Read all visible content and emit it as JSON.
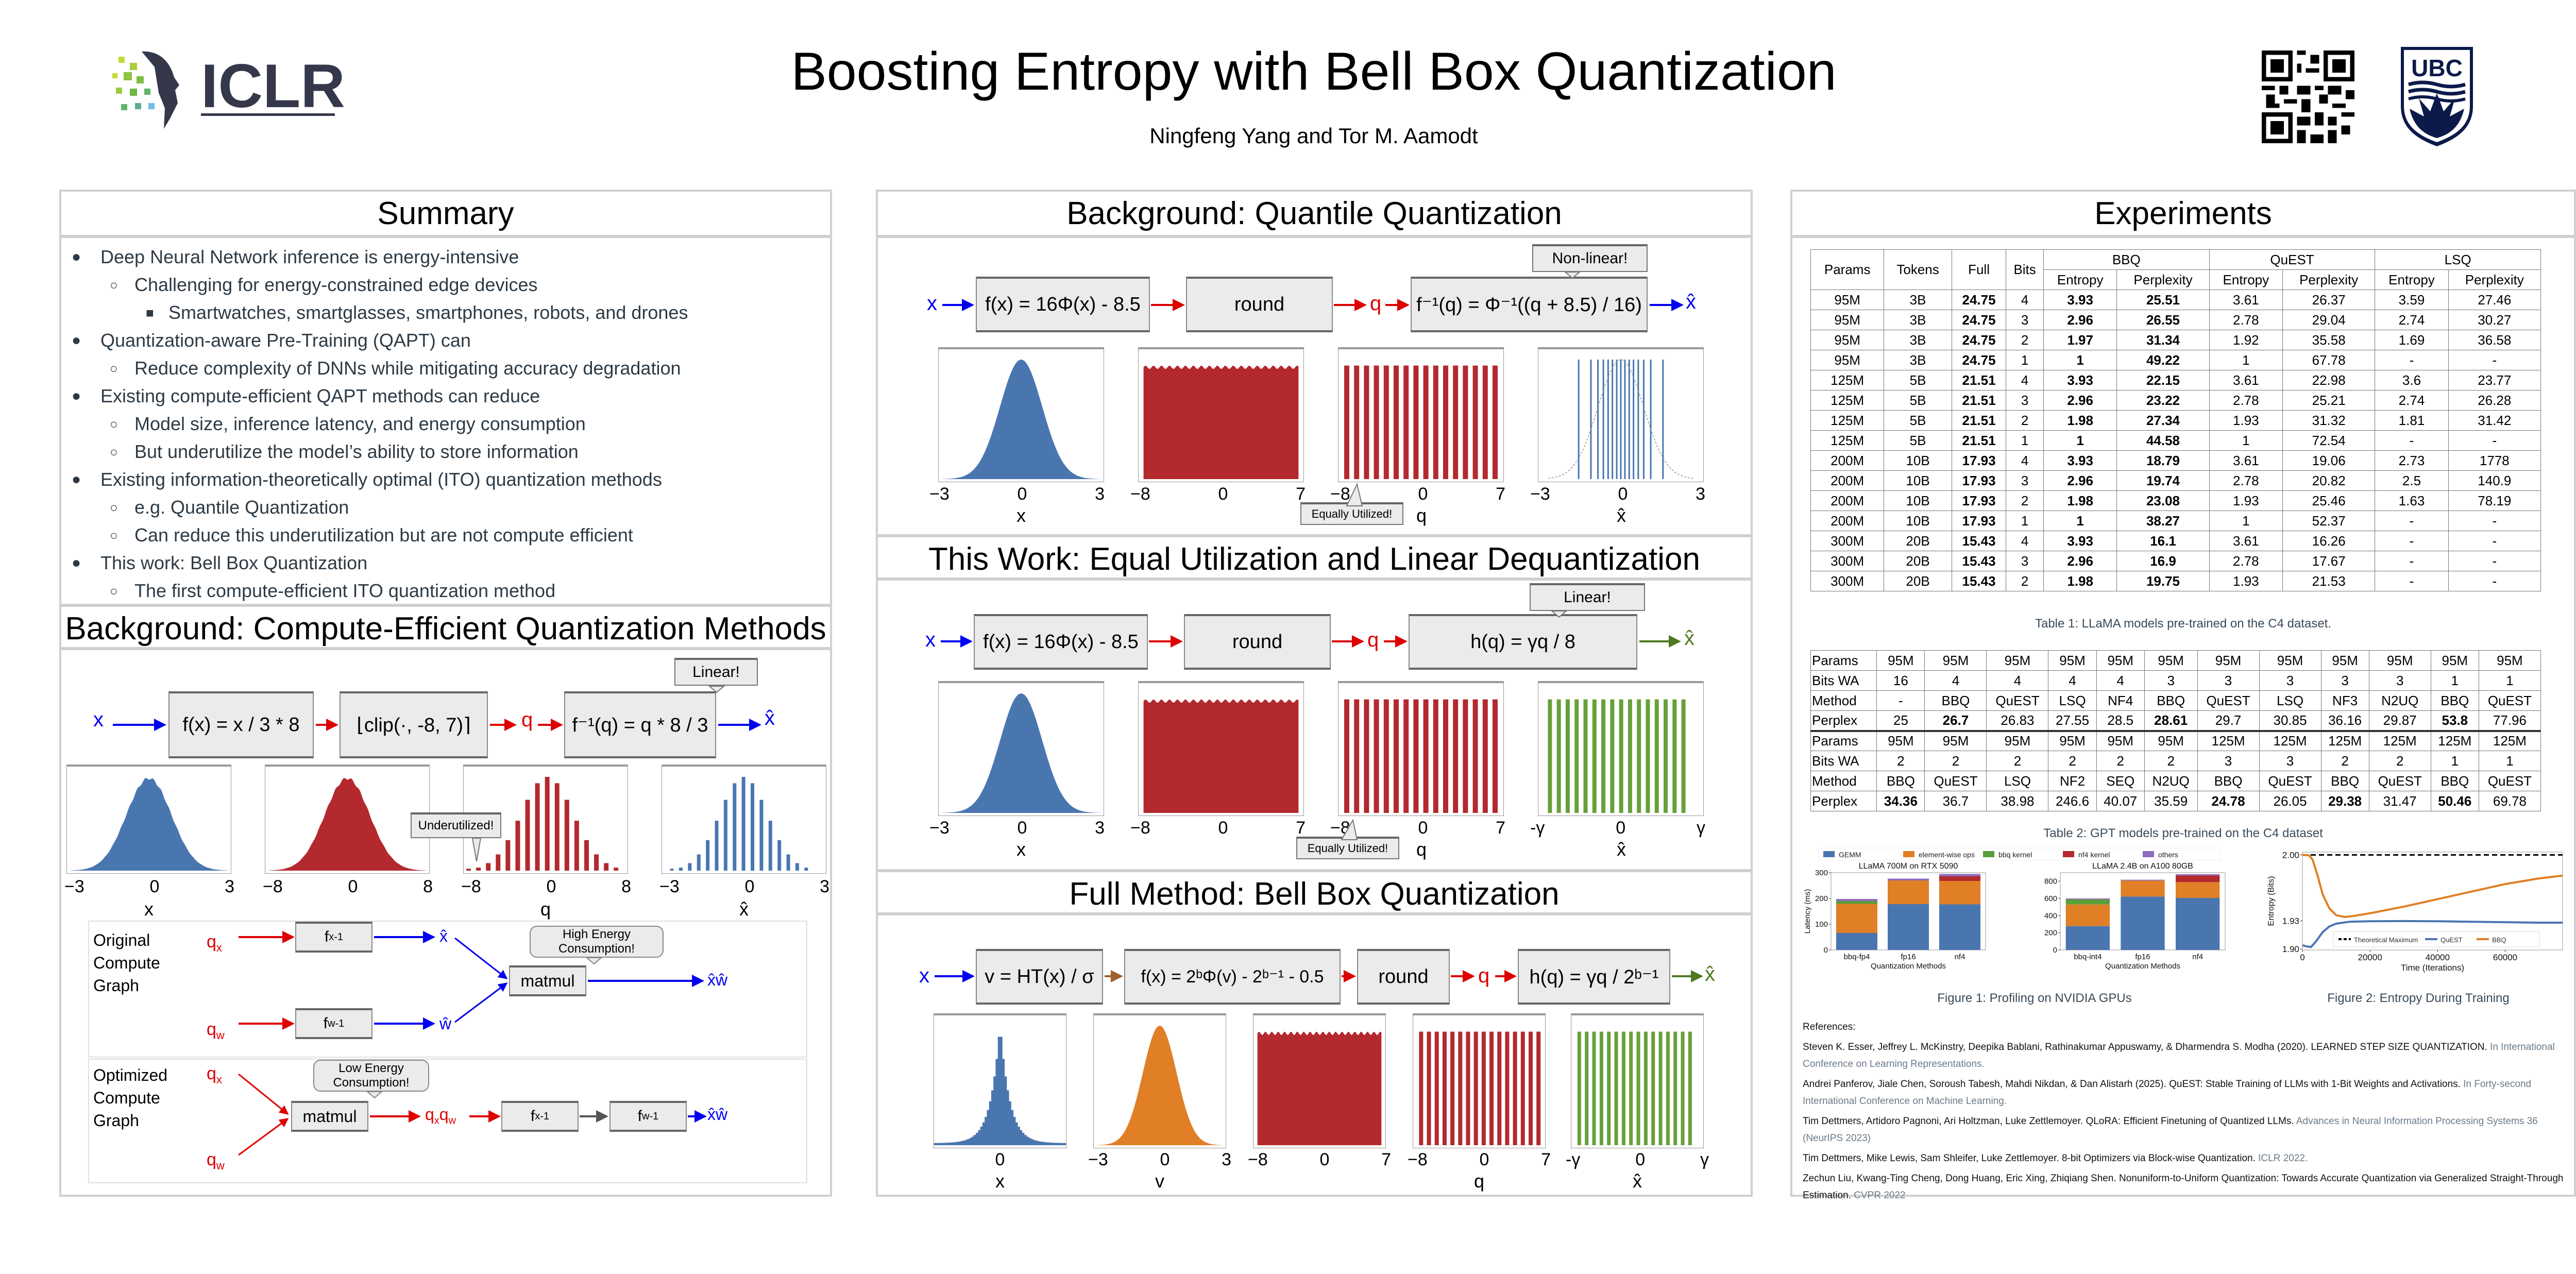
{
  "header": {
    "title": "Boosting Entropy with Bell Box Quantization",
    "authors": "Ningfeng Yang and Tor M. Aamodt",
    "left_logo": "ICLR",
    "right_logo": "UBC",
    "qr_icon": "qr-code-icon"
  },
  "summary": {
    "title": "Summary",
    "items": [
      {
        "level": 0,
        "text": "Deep Neural Network inference is energy-intensive"
      },
      {
        "level": 1,
        "text": "Challenging for energy-constrained edge devices"
      },
      {
        "level": 2,
        "text": "Smartwatches, smartglasses, smartphones, robots, and drones"
      },
      {
        "level": 0,
        "text": "Quantization-aware Pre-Training (QAPT) can"
      },
      {
        "level": 1,
        "text": "Reduce complexity of DNNs while mitigating accuracy degradation"
      },
      {
        "level": 0,
        "text": "Existing compute-efficient QAPT methods can reduce"
      },
      {
        "level": 1,
        "text": "Model size, inference latency, and energy consumption"
      },
      {
        "level": 1,
        "text": "But underutilize the model’s ability to store information"
      },
      {
        "level": 0,
        "text": "Existing information-theoretically optimal (ITO) quantization methods"
      },
      {
        "level": 1,
        "text": "e.g. Quantile Quantization"
      },
      {
        "level": 1,
        "text": "Can reduce this underutilization but are not compute efficient"
      },
      {
        "level": 0,
        "text": "This work: Bell Box Quantization"
      },
      {
        "level": 1,
        "text": "The first compute-efficient ITO quantization method"
      }
    ],
    "bullets": [
      "●",
      "○",
      "■"
    ]
  },
  "compute_efficient": {
    "title": "Background: Compute-Efficient Quantization Methods",
    "input": "x",
    "boxes": [
      "f(x) = x / 3 * 8",
      "⌊clip(·, -8, 7)⌉",
      "f⁻¹(q) = q * 8 / 3"
    ],
    "mid": "q",
    "output": "x̂",
    "callout_linear": "Linear!",
    "callout_under": "Underutilized!",
    "hists": [
      {
        "ticks": [
          "−3",
          "0",
          "3"
        ],
        "label": "x"
      },
      {
        "ticks": [
          "−8",
          "0",
          "8"
        ],
        "label": ""
      },
      {
        "ticks": [
          "−8",
          "0",
          "8"
        ],
        "label": "q"
      },
      {
        "ticks": [
          "−3",
          "0",
          "3"
        ],
        "label": "x̂"
      }
    ],
    "original_graph": {
      "label": [
        "Original",
        "Compute",
        "Graph"
      ],
      "qx": "qx",
      "qw": "qw",
      "fx": "fx⁻¹",
      "fw": "fw⁻¹",
      "xhat": "x̂",
      "what": "ŵ",
      "matmul": "matmul",
      "out": "x̂ŵ",
      "callout": [
        "High Energy",
        "Consumption!"
      ]
    },
    "optimized_graph": {
      "label": [
        "Optimized",
        "Compute",
        "Graph"
      ],
      "qx": "qx",
      "qw": "qw",
      "matmul": "matmul",
      "qxqw": "qxqw",
      "fx": "fx⁻¹",
      "fw": "fw⁻¹",
      "out": "x̂ŵ",
      "callout": [
        "Low Energy",
        "Consumption!"
      ]
    }
  },
  "quantile": {
    "title": "Background: Quantile Quantization",
    "input": "x",
    "boxes": [
      "f(x) = 16Φ(x) - 8.5",
      "round",
      "f⁻¹(q) = Φ⁻¹((q + 8.5) / 16)"
    ],
    "mid": "q",
    "output": "x̂",
    "callout": "Non-linear!",
    "callout_equal": "Equally Utilized!",
    "hists": [
      {
        "ticks": [
          "−3",
          "0",
          "3"
        ],
        "label": "x"
      },
      {
        "ticks": [
          "−8",
          "0",
          "7"
        ],
        "label": ""
      },
      {
        "ticks": [
          "−8",
          "0",
          "7"
        ],
        "label": "q"
      },
      {
        "ticks": [
          "−3",
          "0",
          "3"
        ],
        "label": "x̂"
      }
    ]
  },
  "this_work": {
    "title": "This Work: Equal Utilization and Linear Dequantization",
    "input": "x",
    "boxes": [
      "f(x) = 16Φ(x) - 8.5",
      "round",
      "h(q) = γq / 8"
    ],
    "mid": "q",
    "output": "x̂",
    "callout": "Linear!",
    "callout_equal": "Equally Utilized!",
    "hists": [
      {
        "ticks": [
          "−3",
          "0",
          "3"
        ],
        "label": "x"
      },
      {
        "ticks": [
          "−8",
          "0",
          "7"
        ],
        "label": ""
      },
      {
        "ticks": [
          "−8",
          "0",
          "7"
        ],
        "label": "q"
      },
      {
        "ticks": [
          "-γ",
          "0",
          "γ"
        ],
        "label": "x̂"
      }
    ]
  },
  "full_method": {
    "title": "Full Method: Bell Box Quantization",
    "input": "x",
    "boxes": [
      "v = HT(x) / σ",
      "f(x) = 2ᵇΦ(v) - 2ᵇ⁻¹ - 0.5",
      "round",
      "h(q) = γq / 2ᵇ⁻¹"
    ],
    "mid": "q",
    "output": "x̂",
    "hists": [
      {
        "ticks": [
          "",
          "0",
          ""
        ],
        "label": "x"
      },
      {
        "ticks": [
          "−3",
          "0",
          "3"
        ],
        "label": "v"
      },
      {
        "ticks": [
          "−8",
          "0",
          "7"
        ],
        "label": ""
      },
      {
        "ticks": [
          "−8",
          "0",
          "7"
        ],
        "label": "q"
      },
      {
        "ticks": [
          "-γ",
          "0",
          "γ"
        ],
        "label": "x̂"
      }
    ]
  },
  "experiments": {
    "title": "Experiments",
    "table1": {
      "group_headers": [
        "BBQ",
        "QuEST",
        "LSQ"
      ],
      "headers": [
        "Params",
        "Tokens",
        "Full",
        "Bits",
        "Entropy",
        "Perplexity",
        "Entropy",
        "Perplexity",
        "Entropy",
        "Perplexity"
      ],
      "rows": [
        [
          "95M",
          "3B",
          "24.75",
          "4",
          "3.93",
          "25.51",
          "3.61",
          "26.37",
          "3.59",
          "27.46"
        ],
        [
          "95M",
          "3B",
          "24.75",
          "3",
          "2.96",
          "26.55",
          "2.78",
          "29.04",
          "2.74",
          "30.27"
        ],
        [
          "95M",
          "3B",
          "24.75",
          "2",
          "1.97",
          "31.34",
          "1.92",
          "35.58",
          "1.69",
          "36.58"
        ],
        [
          "95M",
          "3B",
          "24.75",
          "1",
          "1",
          "49.22",
          "1",
          "67.78",
          "-",
          "-"
        ],
        [
          "125M",
          "5B",
          "21.51",
          "4",
          "3.93",
          "22.15",
          "3.61",
          "22.98",
          "3.6",
          "23.77"
        ],
        [
          "125M",
          "5B",
          "21.51",
          "3",
          "2.96",
          "23.22",
          "2.78",
          "25.21",
          "2.74",
          "26.28"
        ],
        [
          "125M",
          "5B",
          "21.51",
          "2",
          "1.98",
          "27.34",
          "1.93",
          "31.32",
          "1.81",
          "31.42"
        ],
        [
          "125M",
          "5B",
          "21.51",
          "1",
          "1",
          "44.58",
          "1",
          "72.54",
          "-",
          "-"
        ],
        [
          "200M",
          "10B",
          "17.93",
          "4",
          "3.93",
          "18.79",
          "3.61",
          "19.06",
          "2.73",
          "1778"
        ],
        [
          "200M",
          "10B",
          "17.93",
          "3",
          "2.96",
          "19.74",
          "2.78",
          "20.82",
          "2.5",
          "140.9"
        ],
        [
          "200M",
          "10B",
          "17.93",
          "2",
          "1.98",
          "23.08",
          "1.93",
          "25.46",
          "1.63",
          "78.19"
        ],
        [
          "200M",
          "10B",
          "17.93",
          "1",
          "1",
          "38.27",
          "1",
          "52.37",
          "-",
          "-"
        ],
        [
          "300M",
          "20B",
          "15.43",
          "4",
          "3.93",
          "16.1",
          "3.61",
          "16.26",
          "-",
          "-"
        ],
        [
          "300M",
          "20B",
          "15.43",
          "3",
          "2.96",
          "16.9",
          "2.78",
          "17.67",
          "-",
          "-"
        ],
        [
          "300M",
          "20B",
          "15.43",
          "2",
          "1.98",
          "19.75",
          "1.93",
          "21.53",
          "-",
          "-"
        ]
      ],
      "caption": "Table 1: LLaMA models pre-trained on the C4 dataset."
    },
    "table2": {
      "blocks": [
        {
          "Params": [
            "95M",
            "95M",
            "95M",
            "95M",
            "95M",
            "95M",
            "95M",
            "95M",
            "95M",
            "95M",
            "95M",
            "95M"
          ],
          "Bits WA": [
            "16",
            "4",
            "4",
            "4",
            "4",
            "3",
            "3",
            "3",
            "3",
            "3",
            "1",
            "1"
          ],
          "Method": [
            "-",
            "BBQ",
            "QuEST",
            "LSQ",
            "NF4",
            "BBQ",
            "QuEST",
            "LSQ",
            "NF3",
            "N2UQ",
            "BBQ",
            "QuEST"
          ],
          "Perplex": [
            "25",
            "26.7",
            "26.83",
            "27.55",
            "28.5",
            "28.61",
            "29.7",
            "30.85",
            "36.16",
            "29.87",
            "53.8",
            "77.96"
          ],
          "bold": [
            1,
            5,
            10
          ]
        },
        {
          "Params": [
            "95M",
            "95M",
            "95M",
            "95M",
            "95M",
            "95M",
            "125M",
            "125M",
            "125M",
            "125M",
            "125M",
            "125M"
          ],
          "Bits WA": [
            "2",
            "2",
            "2",
            "2",
            "2",
            "2",
            "3",
            "3",
            "2",
            "2",
            "1",
            "1"
          ],
          "Method": [
            "BBQ",
            "QuEST",
            "LSQ",
            "NF2",
            "SEQ",
            "N2UQ",
            "BBQ",
            "QuEST",
            "BBQ",
            "QuEST",
            "BBQ",
            "QuEST"
          ],
          "Perplex": [
            "34.36",
            "36.7",
            "38.98",
            "246.6",
            "40.07",
            "35.59",
            "24.78",
            "26.05",
            "29.38",
            "31.47",
            "50.46",
            "69.78"
          ],
          "bold": [
            0,
            6,
            8,
            10
          ]
        }
      ],
      "row_labels": [
        "Params",
        "Bits WA",
        "Method",
        "Perplex"
      ],
      "caption": "Table 2: GPT models pre-trained on the C4 dataset"
    },
    "figure1_caption": "Figure 1: Profiling on NVIDIA GPUs",
    "figure2_caption": "Figure 2: Entropy During Training",
    "references_title": "References:",
    "references": [
      {
        "text": "Steven K. Esser, Jeffrey L. McKinstry, Deepika Bablani, Rathinakumar Appuswamy, & Dharmendra S. Modha (2020). LEARNED STEP SIZE QUANTIZATION. ",
        "venue": "In International Conference on Learning Representations."
      },
      {
        "text": "Andrei Panferov, Jiale Chen, Soroush Tabesh, Mahdi Nikdan, & Dan Alistarh (2025). QuEST: Stable Training of LLMs with 1-Bit Weights and Activations. ",
        "venue": "In Forty-second International Conference on Machine Learning."
      },
      {
        "text": "Tim Dettmers, Artidoro Pagnoni, Ari Holtzman, Luke Zettlemoyer. QLoRA: Efficient Finetuning of Quantized LLMs. ",
        "venue": "Advances in Neural Information Processing Systems 36 (NeurIPS 2023)"
      },
      {
        "text": "Tim Dettmers, Mike Lewis, Sam Shleifer, Luke Zettlemoyer. 8-bit Optimizers via Block-wise Quantization. ",
        "venue": "ICLR 2022."
      },
      {
        "text": "Zechun Liu, Kwang-Ting Cheng, Dong Huang, Eric Xing, Zhiqiang Shen. Nonuniform-to-Uniform Quantization: Towards Accurate Quantization via Generalized Straight-Through Estimation. ",
        "venue": "CVPR 2022"
      }
    ]
  },
  "colors": {
    "hist_blue": "#4a76b0",
    "hist_red": "#b3292e",
    "hist_green": "#67a03a",
    "hist_orange": "#e07f26",
    "arrow_blue": "#0000ee",
    "arrow_red": "#dd0000",
    "arrow_green": "#4e7a22",
    "arrow_brown": "#a0602a"
  },
  "chart_data": [
    {
      "type": "bar",
      "stacked": true,
      "title": "LLaMA 700M on RTX 5090",
      "xlabel": "Quantization Methods",
      "ylabel": "Latency (ms)",
      "categories": [
        "bbq-fp4",
        "fp16",
        "nf4"
      ],
      "ylim": [
        0,
        300
      ],
      "yticks": [
        0,
        100,
        200,
        300
      ],
      "legend": "top",
      "series": [
        {
          "name": "GEMM",
          "color": "#4a76b0",
          "values": [
            66,
            178,
            177
          ]
        },
        {
          "name": "element-wise ops",
          "color": "#e07f26",
          "values": [
            113,
            92,
            91
          ]
        },
        {
          "name": "bbq kernel",
          "color": "#5c9e3a",
          "values": [
            11,
            0,
            0
          ]
        },
        {
          "name": "nf4 kernel",
          "color": "#b3292e",
          "values": [
            0,
            0,
            18
          ]
        },
        {
          "name": "others",
          "color": "#8e6bbf",
          "values": [
            8,
            7,
            9
          ]
        }
      ]
    },
    {
      "type": "bar",
      "stacked": true,
      "title": "LLaMA 2.4B on A100 80GB",
      "xlabel": "Quantization Methods",
      "ylabel": "",
      "categories": [
        "bbq-int4",
        "fp16",
        "nf4"
      ],
      "ylim": [
        0,
        900
      ],
      "yticks": [
        0,
        200,
        400,
        600,
        800
      ],
      "series": [
        {
          "name": "GEMM",
          "color": "#4a76b0",
          "values": [
            278,
            622,
            606
          ]
        },
        {
          "name": "element-wise ops",
          "color": "#e07f26",
          "values": [
            252,
            186,
            184
          ]
        },
        {
          "name": "bbq kernel",
          "color": "#5c9e3a",
          "values": [
            60,
            0,
            0
          ]
        },
        {
          "name": "nf4 kernel",
          "color": "#b3292e",
          "values": [
            0,
            0,
            78
          ]
        },
        {
          "name": "others",
          "color": "#8e6bbf",
          "values": [
            10,
            10,
            14
          ]
        }
      ]
    },
    {
      "type": "line",
      "title": "",
      "xlabel": "Time (Iterations)",
      "ylabel": "Entropy (Bits)",
      "xlim": [
        0,
        77000
      ],
      "ylim": [
        1.899,
        2.003
      ],
      "xticks": [
        0,
        20000,
        40000,
        60000
      ],
      "yticks": [
        1.9,
        1.93,
        2.0
      ],
      "ytick_labels": [
        "1.90",
        "1.93",
        "2.00"
      ],
      "legend": "bottom",
      "series": [
        {
          "name": "Theoretical Maximum",
          "color": "#000000",
          "dashed": true,
          "x": [
            0,
            77000
          ],
          "y": [
            2.0,
            2.0
          ]
        },
        {
          "name": "QuEST",
          "color": "#4a76b0",
          "x": [
            0,
            1000,
            2500,
            4000,
            6000,
            8000,
            10000,
            14000,
            20000,
            30000,
            40000,
            50000,
            60000,
            70000,
            77000
          ],
          "y": [
            1.904,
            1.903,
            1.902,
            1.908,
            1.918,
            1.924,
            1.927,
            1.929,
            1.9295,
            1.9297,
            1.9295,
            1.929,
            1.9285,
            1.928,
            1.928
          ]
        },
        {
          "name": "BBQ",
          "color": "#e07f26",
          "x": [
            0,
            2000,
            3000,
            4500,
            6000,
            8000,
            10000,
            12500,
            15000,
            20000,
            30000,
            40000,
            50000,
            60000,
            70000,
            77000
          ],
          "y": [
            2.0,
            1.9995,
            1.995,
            1.978,
            1.958,
            1.943,
            1.936,
            1.934,
            1.935,
            1.938,
            1.945,
            1.953,
            1.961,
            1.969,
            1.975,
            1.978
          ]
        }
      ]
    }
  ]
}
